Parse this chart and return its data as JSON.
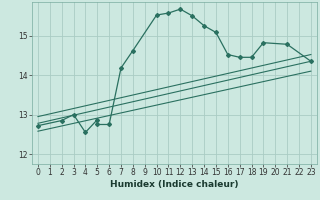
{
  "xlabel": "Humidex (Indice chaleur)",
  "bg_color": "#cce8e0",
  "grid_color": "#aaccC4",
  "line_color": "#2a7060",
  "xlim": [
    -0.5,
    23.5
  ],
  "ylim": [
    11.75,
    15.85
  ],
  "yticks": [
    12,
    13,
    14,
    15
  ],
  "xticks": [
    0,
    1,
    2,
    3,
    4,
    5,
    6,
    7,
    8,
    9,
    10,
    11,
    12,
    13,
    14,
    15,
    16,
    17,
    18,
    19,
    20,
    21,
    22,
    23
  ],
  "main_curve_x": [
    0,
    2,
    3,
    4,
    5,
    5,
    6,
    7,
    8,
    10,
    11,
    12,
    13,
    14,
    15,
    16,
    17,
    18,
    19,
    21,
    23
  ],
  "main_curve_y": [
    12.72,
    12.85,
    13.0,
    12.55,
    12.87,
    12.75,
    12.75,
    14.18,
    14.62,
    15.52,
    15.57,
    15.67,
    15.5,
    15.25,
    15.08,
    14.52,
    14.45,
    14.45,
    14.82,
    14.78,
    14.35
  ],
  "line1_x": [
    0,
    23
  ],
  "line1_y": [
    12.95,
    14.52
  ],
  "line2_x": [
    0,
    23
  ],
  "line2_y": [
    12.78,
    14.35
  ],
  "line3_x": [
    0,
    23
  ],
  "line3_y": [
    12.58,
    14.1
  ]
}
